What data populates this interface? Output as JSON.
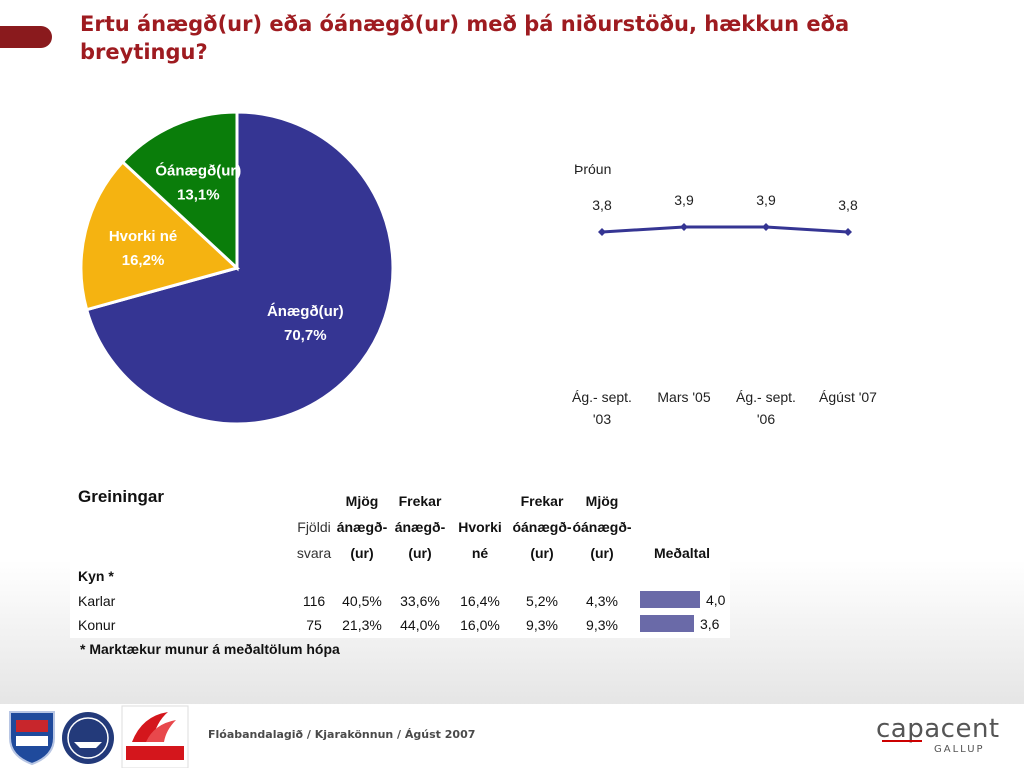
{
  "title": "Ertu ánægð(ur) eða óánægð(ur) með þá niðurstöðu, hækkun eða breytingu?",
  "chart_data": [
    {
      "type": "pie",
      "slices": [
        {
          "label": "Ánægð(ur)",
          "value": 70.7,
          "value_label": "70,7%",
          "color": "#353593"
        },
        {
          "label": "Hvorki né",
          "value": 16.2,
          "value_label": "16,2%",
          "color": "#f5b311"
        },
        {
          "label": "Óánægð(ur)",
          "value": 13.1,
          "value_label": "13,1%",
          "color": "#0a7d0a"
        }
      ]
    },
    {
      "type": "line",
      "title": "Þróun",
      "categories": [
        "Ág.- sept. '03",
        "Mars '05",
        "Ág.- sept. '06",
        "Ágúst '07"
      ],
      "category_lines": [
        [
          "Ág.- sept.",
          "'03"
        ],
        [
          "Mars '05"
        ],
        [
          "Ág.- sept.",
          "'06"
        ],
        [
          "Ágúst '07"
        ]
      ],
      "values": [
        3.8,
        3.9,
        3.9,
        3.8
      ],
      "value_labels": [
        "3,8",
        "3,9",
        "3,9",
        "3,8"
      ],
      "color": "#353593"
    },
    {
      "type": "table",
      "title": "Greiningar",
      "columns": [
        [
          "Fjöldi",
          "svara"
        ],
        [
          "Mjög",
          "ánægð-",
          "(ur)"
        ],
        [
          "Frekar",
          "ánægð-",
          "(ur)"
        ],
        [
          "Hvorki",
          "né"
        ],
        [
          "Frekar",
          "óánægð-",
          "(ur)"
        ],
        [
          "Mjög",
          "óánægð-",
          "(ur)"
        ],
        [
          "Meðaltal"
        ]
      ],
      "group_label": "Kyn *",
      "rows": [
        {
          "label": "Karlar",
          "cells": [
            "116",
            "40,5%",
            "33,6%",
            "16,4%",
            "5,2%",
            "4,3%"
          ],
          "mean": 4.0,
          "mean_label": "4,0"
        },
        {
          "label": "Konur",
          "cells": [
            "75",
            "21,3%",
            "44,0%",
            "16,0%",
            "9,3%",
            "9,3%"
          ],
          "mean": 3.6,
          "mean_label": "3,6"
        }
      ],
      "bar_color": "#6a6aa8",
      "footnote": "* Marktækur munur á meðaltölum hópa"
    }
  ],
  "footer": {
    "text": "Flóabandalagið  / Kjarakönnun / Ágúst 2007",
    "logos": [
      "VLF HLIF",
      "VSFK",
      "EFLING"
    ],
    "brand": "capacent",
    "brand_sub": "GALLUP"
  }
}
